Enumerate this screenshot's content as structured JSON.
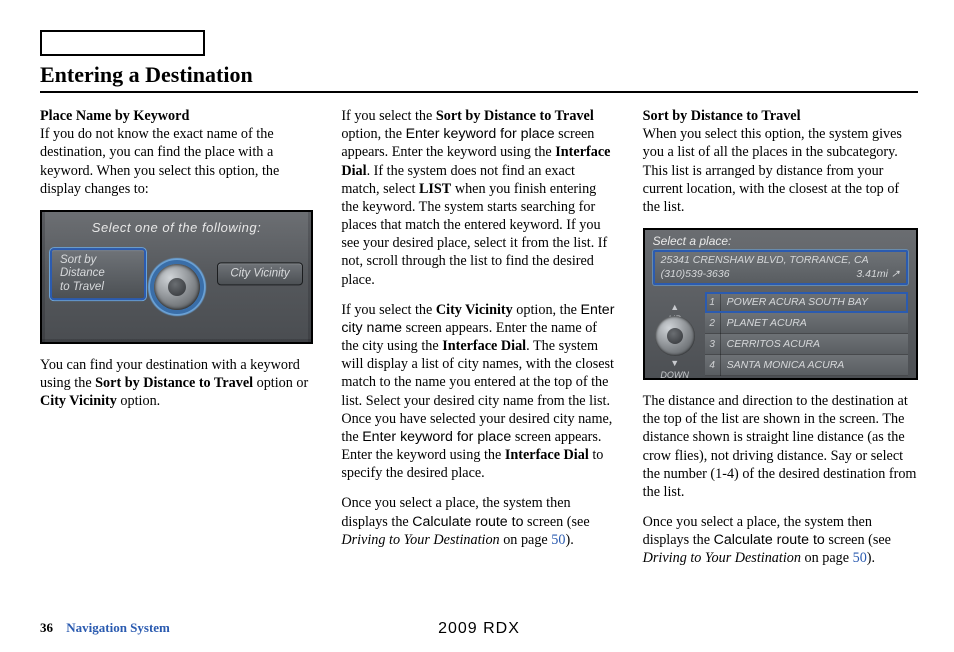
{
  "header": {
    "title": "Entering a Destination"
  },
  "col1": {
    "h": "Place Name by Keyword",
    "p1": "If you do not know the exact name of the destination, you can find the place with a keyword. When you select this option, the display changes to:",
    "shot": {
      "top": "Select one of the following:",
      "left1": "Sort by Distance",
      "left2": "to Travel",
      "right": "City Vicinity"
    },
    "p2a": "You can find your destination with a keyword using the ",
    "p2b": "Sort by Distance to Travel",
    "p2c": " option or ",
    "p2d": "City Vicinity",
    "p2e": " option."
  },
  "col2": {
    "p1a": "If you select the ",
    "p1b": "Sort by Distance to Travel",
    "p1c": " option, the ",
    "p1d": "Enter keyword for place",
    "p1e": " screen appears. Enter the keyword using the ",
    "p1f": "Interface Dial",
    "p1g": ". If the system does not find an exact match, select ",
    "p1h": "LIST",
    "p1i": " when you finish entering the keyword. The system starts searching for places that match the entered keyword. If you see your desired place, select it from the list. If not, scroll through the list to find the desired place.",
    "p2a": "If you select the ",
    "p2b": "City Vicinity",
    "p2c": " option, the ",
    "p2d": "Enter city name",
    "p2e": " screen appears. Enter the name of the city using the ",
    "p2f": "Interface Dial",
    "p2g": ". The system will display a list of city names, with the closest match to the name you entered at the top of the list. Select your desired city name from the list. Once you have selected your desired city name, the ",
    "p2h": "Enter keyword for place",
    "p2i": " screen appears. Enter the keyword using the ",
    "p2j": "Interface Dial",
    "p2k": " to specify the desired place.",
    "p3a": "Once you select a place, the system then displays the ",
    "p3b": "Calculate route to",
    "p3c": " screen (see ",
    "p3d": "Driving to Your Destination",
    "p3e": " on page ",
    "p3f": "50",
    "p3g": ")."
  },
  "col3": {
    "h": "Sort by Distance to Travel",
    "p1": "When you select this option, the system gives you a list of all the places in the subcategory. This list is arranged by distance from your current location, with the closest at the top of the list.",
    "shot": {
      "hdr": "Select a place:",
      "addr1": "25341 CRENSHAW BLVD, TORRANCE, CA",
      "phone": "(310)539-3636",
      "dist": "3.41mi",
      "rows": [
        {
          "n": "1",
          "t": "POWER ACURA SOUTH BAY"
        },
        {
          "n": "2",
          "t": "PLANET ACURA"
        },
        {
          "n": "3",
          "t": "CERRITOS ACURA"
        },
        {
          "n": "4",
          "t": "SANTA MONICA ACURA"
        }
      ],
      "up": "UP",
      "down": "DOWN"
    },
    "p2": "The distance and direction to the destination at the top of the list are shown in the screen. The distance shown is straight line distance (as the crow flies), not driving distance. Say or select the number (1-4) of the desired destination from the list.",
    "p3a": "Once you select a place, the system then displays the ",
    "p3b": "Calculate route to",
    "p3c": " screen (see ",
    "p3d": "Driving to Your Destination",
    "p3e": " on page ",
    "p3f": "50",
    "p3g": ")."
  },
  "footer": {
    "page": "36",
    "section": "Navigation System",
    "model": "2009 RDX"
  }
}
